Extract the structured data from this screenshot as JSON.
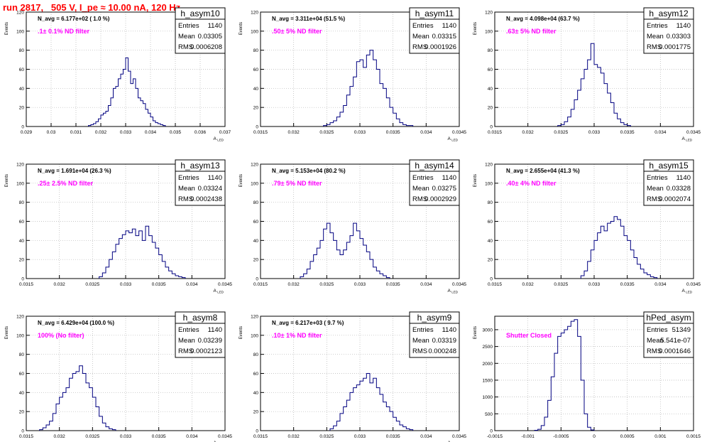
{
  "page_title": "run 2817,   505 V, I_pe ≈ 10.00 nA, 120 Hz",
  "colors": {
    "title": "#ff0000",
    "annotation": "#ff00ff",
    "histogram": "#000080",
    "grid": "#b4b4b4"
  },
  "chart_data": [
    {
      "type": "histogram",
      "name": "h_asym10",
      "stats": [
        [
          "Entries",
          "1140"
        ],
        [
          "Mean",
          "0.03305"
        ],
        [
          "RMS",
          "0.0006208"
        ]
      ],
      "navg": "N_avg = 6.177e+02 ( 1.0 %)",
      "filter": ".1± 0.1% ND filter",
      "xlabel": "A_LED",
      "ylabel": "Events",
      "xlim": [
        0.029,
        0.037
      ],
      "ylim": [
        0,
        120
      ],
      "xticks": [
        0.029,
        0.03,
        0.031,
        0.032,
        0.033,
        0.034,
        0.035,
        0.036,
        0.037
      ],
      "xtick_labels": [
        "0.029",
        "0.03",
        "0.031",
        "0.032",
        "0.033",
        "0.034",
        "0.035",
        "0.036",
        "0.037"
      ],
      "yticks": [
        0,
        20,
        40,
        60,
        80,
        100,
        120
      ],
      "ytick_labels": [
        "0",
        "20",
        "40",
        "60",
        "80",
        "100",
        "120"
      ],
      "bin_start": 0.0315,
      "bin_width": 0.0001,
      "counts": [
        1,
        2,
        3,
        5,
        8,
        12,
        14,
        16,
        22,
        30,
        40,
        42,
        50,
        55,
        60,
        72,
        58,
        45,
        50,
        40,
        30,
        27,
        24,
        18,
        14,
        10,
        6,
        4,
        3,
        2,
        1
      ]
    },
    {
      "type": "histogram",
      "name": "h_asym11",
      "stats": [
        [
          "Entries",
          "1140"
        ],
        [
          "Mean",
          "0.03315"
        ],
        [
          "RMS",
          "0.0001926"
        ]
      ],
      "navg": "N_avg = 3.311e+04 (51.5 %)",
      "filter": ".50± 5% ND filter",
      "xlabel": "A_LED",
      "ylabel": "Events",
      "xlim": [
        0.0315,
        0.0345
      ],
      "ylim": [
        0,
        120
      ],
      "xticks": [
        0.0315,
        0.032,
        0.0325,
        0.033,
        0.0335,
        0.034,
        0.0345
      ],
      "xtick_labels": [
        "0.0315",
        "0.032",
        "0.0325",
        "0.033",
        "0.0335",
        "0.034",
        "0.0345"
      ],
      "yticks": [
        0,
        20,
        40,
        60,
        80,
        100,
        120
      ],
      "ytick_labels": [
        "0",
        "20",
        "40",
        "60",
        "80",
        "100",
        "120"
      ],
      "bin_start": 0.03245,
      "bin_width": 5e-05,
      "counts": [
        1,
        2,
        4,
        6,
        10,
        15,
        22,
        33,
        42,
        52,
        68,
        70,
        62,
        75,
        80,
        70,
        60,
        45,
        40,
        30,
        20,
        14,
        8,
        4,
        2,
        1,
        1
      ]
    },
    {
      "type": "histogram",
      "name": "h_asym12",
      "stats": [
        [
          "Entries",
          "1140"
        ],
        [
          "Mean",
          "0.03303"
        ],
        [
          "RMS",
          "0.0001775"
        ]
      ],
      "navg": "N_avg = 4.098e+04 (63.7 %)",
      "filter": ".63± 5% ND filter",
      "xlabel": "A_LED",
      "ylabel": "Events",
      "xlim": [
        0.0315,
        0.0345
      ],
      "ylim": [
        0,
        120
      ],
      "xticks": [
        0.0315,
        0.032,
        0.0325,
        0.033,
        0.0335,
        0.034,
        0.0345
      ],
      "xtick_labels": [
        "0.0315",
        "0.032",
        "0.0325",
        "0.033",
        "0.0335",
        "0.034",
        "0.0345"
      ],
      "yticks": [
        0,
        20,
        40,
        60,
        80,
        100,
        120
      ],
      "ytick_labels": [
        "0",
        "20",
        "40",
        "60",
        "80",
        "100",
        "120"
      ],
      "bin_start": 0.03245,
      "bin_width": 5e-05,
      "counts": [
        1,
        2,
        5,
        10,
        18,
        28,
        38,
        50,
        60,
        70,
        87,
        65,
        62,
        56,
        45,
        35,
        25,
        14,
        8,
        4,
        2,
        1
      ]
    },
    {
      "type": "histogram",
      "name": "h_asym13",
      "stats": [
        [
          "Entries",
          "1140"
        ],
        [
          "Mean",
          "0.03324"
        ],
        [
          "RMS",
          "0.0002438"
        ]
      ],
      "navg": "N_avg = 1.691e+04 (26.3 %)",
      "filter": ".25± 2.5% ND filter",
      "xlabel": "A_LED",
      "ylabel": "Events",
      "xlim": [
        0.0315,
        0.0345
      ],
      "ylim": [
        0,
        120
      ],
      "xticks": [
        0.0315,
        0.032,
        0.0325,
        0.033,
        0.0335,
        0.034,
        0.0345
      ],
      "xtick_labels": [
        "0.0315",
        "0.032",
        "0.0325",
        "0.033",
        "0.0335",
        "0.034",
        "0.0345"
      ],
      "yticks": [
        0,
        20,
        40,
        60,
        80,
        100,
        120
      ],
      "ytick_labels": [
        "0",
        "20",
        "40",
        "60",
        "80",
        "100",
        "120"
      ],
      "bin_start": 0.0326,
      "bin_width": 5e-05,
      "counts": [
        2,
        6,
        12,
        20,
        28,
        36,
        42,
        46,
        50,
        48,
        52,
        45,
        50,
        40,
        55,
        45,
        38,
        32,
        25,
        18,
        12,
        8,
        5,
        3,
        2,
        1
      ]
    },
    {
      "type": "histogram",
      "name": "h_asym14",
      "stats": [
        [
          "Entries",
          "1140"
        ],
        [
          "Mean",
          "0.03275"
        ],
        [
          "RMS",
          "0.0002929"
        ]
      ],
      "navg": "N_avg = 5.153e+04 (80.2 %)",
      "filter": ".79± 5% ND filter",
      "xlabel": "A_LED",
      "ylabel": "Events",
      "xlim": [
        0.0315,
        0.0345
      ],
      "ylim": [
        0,
        120
      ],
      "xticks": [
        0.0315,
        0.032,
        0.0325,
        0.033,
        0.0335,
        0.034,
        0.0345
      ],
      "xtick_labels": [
        "0.0315",
        "0.032",
        "0.0325",
        "0.033",
        "0.0335",
        "0.034",
        "0.0345"
      ],
      "yticks": [
        0,
        20,
        40,
        60,
        80,
        100,
        120
      ],
      "ytick_labels": [
        "0",
        "20",
        "40",
        "60",
        "80",
        "100",
        "120"
      ],
      "bin_start": 0.0321,
      "bin_width": 5e-05,
      "counts": [
        2,
        5,
        10,
        18,
        25,
        32,
        40,
        52,
        58,
        48,
        40,
        30,
        25,
        30,
        38,
        45,
        58,
        50,
        42,
        35,
        28,
        20,
        12,
        8,
        5,
        3,
        1
      ]
    },
    {
      "type": "histogram",
      "name": "h_asym15",
      "stats": [
        [
          "Entries",
          "1140"
        ],
        [
          "Mean",
          "0.03328"
        ],
        [
          "RMS",
          "0.0002074"
        ]
      ],
      "navg": "N_avg = 2.655e+04 (41.3 %)",
      "filter": ".40± 4% ND filter",
      "xlabel": "A_LED",
      "ylabel": "Events",
      "xlim": [
        0.0315,
        0.0345
      ],
      "ylim": [
        0,
        120
      ],
      "xticks": [
        0.0315,
        0.032,
        0.0325,
        0.033,
        0.0335,
        0.034,
        0.0345
      ],
      "xtick_labels": [
        "0.0315",
        "0.032",
        "0.0325",
        "0.033",
        "0.0335",
        "0.034",
        "0.0345"
      ],
      "yticks": [
        0,
        20,
        40,
        60,
        80,
        100,
        120
      ],
      "ytick_labels": [
        "0",
        "20",
        "40",
        "60",
        "80",
        "100",
        "120"
      ],
      "bin_start": 0.0328,
      "bin_width": 5e-05,
      "counts": [
        3,
        8,
        18,
        30,
        40,
        48,
        55,
        50,
        58,
        60,
        65,
        62,
        55,
        45,
        40,
        30,
        22,
        15,
        10,
        6,
        4,
        2,
        1
      ]
    },
    {
      "type": "histogram",
      "name": "h_asym8",
      "stats": [
        [
          "Entries",
          "1140"
        ],
        [
          "Mean",
          "0.03239"
        ],
        [
          "RMS",
          "0.0002123"
        ]
      ],
      "navg": "N_avg = 6.429e+04 (100.0 %)",
      "filter": "100% (No filter)",
      "xlabel": "A_LED",
      "ylabel": "Events",
      "xlim": [
        0.0315,
        0.0345
      ],
      "ylim": [
        0,
        120
      ],
      "xticks": [
        0.0315,
        0.032,
        0.0325,
        0.033,
        0.0335,
        0.034,
        0.0345
      ],
      "xtick_labels": [
        "0.0315",
        "0.032",
        "0.0325",
        "0.033",
        "0.0335",
        "0.034",
        "0.0345"
      ],
      "yticks": [
        0,
        20,
        40,
        60,
        80,
        100,
        120
      ],
      "ytick_labels": [
        "0",
        "20",
        "40",
        "60",
        "80",
        "100",
        "120"
      ],
      "bin_start": 0.0317,
      "bin_width": 5e-05,
      "counts": [
        1,
        3,
        6,
        10,
        18,
        28,
        35,
        40,
        45,
        55,
        60,
        62,
        68,
        60,
        50,
        45,
        35,
        25,
        15,
        8,
        4,
        2,
        1
      ]
    },
    {
      "type": "histogram",
      "name": "h_asym9",
      "stats": [
        [
          "Entries",
          "1140"
        ],
        [
          "Mean",
          "0.03319"
        ],
        [
          "RMS",
          "0.000248"
        ]
      ],
      "navg": "N_avg = 6.217e+03 ( 9.7 %)",
      "filter": ".10± 1% ND filter",
      "xlabel": "A_LED",
      "ylabel": "Events",
      "xlim": [
        0.0315,
        0.0345
      ],
      "ylim": [
        0,
        120
      ],
      "xticks": [
        0.0315,
        0.032,
        0.0325,
        0.033,
        0.0335,
        0.034,
        0.0345
      ],
      "xtick_labels": [
        "0.0315",
        "0.032",
        "0.0325",
        "0.033",
        "0.0335",
        "0.034",
        "0.0345"
      ],
      "yticks": [
        0,
        20,
        40,
        60,
        80,
        100,
        120
      ],
      "ytick_labels": [
        "0",
        "20",
        "40",
        "60",
        "80",
        "100",
        "120"
      ],
      "bin_start": 0.03255,
      "bin_width": 5e-05,
      "counts": [
        2,
        5,
        10,
        18,
        25,
        32,
        40,
        45,
        48,
        52,
        55,
        60,
        50,
        55,
        45,
        38,
        30,
        25,
        20,
        14,
        10,
        6,
        4,
        2,
        1
      ]
    },
    {
      "type": "histogram",
      "name": "hPed_asym",
      "stats": [
        [
          "Entries",
          "51349"
        ],
        [
          "Mean",
          "5.541e-07"
        ],
        [
          "RMS",
          "0.0001646"
        ]
      ],
      "navg": "",
      "filter": "Shutter Closed",
      "xlabel": "",
      "ylabel": "Events",
      "xlim": [
        -0.0015,
        0.0015
      ],
      "ylim": [
        0,
        3400
      ],
      "xticks": [
        -0.0015,
        -0.001,
        -0.0005,
        0,
        0.0005,
        0.001,
        0.0015
      ],
      "xtick_labels": [
        "-0.0015",
        "-0.001",
        "-0.0005",
        "0",
        "0.0005",
        "0.001",
        "0.0015"
      ],
      "yticks": [
        0,
        500,
        1000,
        1500,
        2000,
        2500,
        3000
      ],
      "ytick_labels": [
        "0",
        "500",
        "1000",
        "1500",
        "2000",
        "2500",
        "3000"
      ],
      "bin_start": -0.0009,
      "bin_width": 5e-05,
      "counts": [
        10,
        40,
        150,
        400,
        900,
        1600,
        2300,
        2800,
        2900,
        3000,
        3100,
        3250,
        3300,
        2800,
        1500,
        500,
        100,
        20
      ]
    }
  ]
}
